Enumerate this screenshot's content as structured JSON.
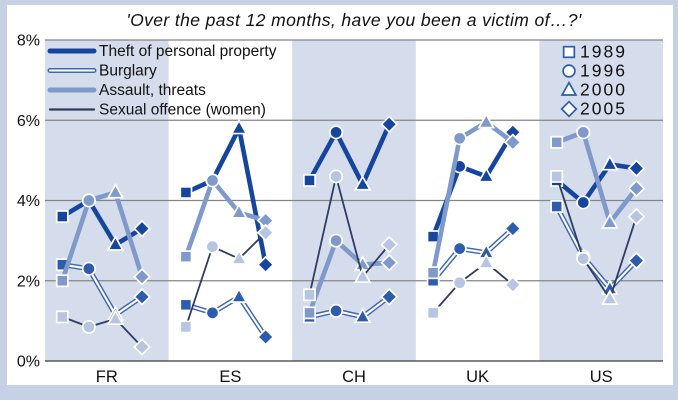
{
  "frame": {
    "outer_color": "#c7d1e6",
    "inner_color": "#ffffff"
  },
  "title": "'Over the past 12 months, have you been a victim of…?'",
  "chart_data": {
    "type": "line",
    "title": "'Over the past 12 months, have you been a victim of…?'",
    "ylim": [
      0,
      8
    ],
    "ytick_labels": [
      "8%",
      "6%",
      "4%",
      "2%",
      "0%"
    ],
    "ytick_values": [
      8,
      6,
      4,
      2,
      0
    ],
    "grid": true,
    "band_color": "#d5ddec",
    "gridline_color": "#858585",
    "baseline_color": "#3a3a3a",
    "categories": [
      "FR",
      "ES",
      "CH",
      "UK",
      "US"
    ],
    "years": [
      {
        "label": "1989",
        "marker": "square"
      },
      {
        "label": "1996",
        "marker": "circle"
      },
      {
        "label": "2000",
        "marker": "triangle"
      },
      {
        "label": "2005",
        "marker": "diamond"
      }
    ],
    "legend_series_position": "top-left",
    "legend_years_position": "top-right",
    "year_symbol_color": "#2d5cac",
    "series": [
      {
        "key": "theft",
        "name": "Theft of personal property",
        "line_style": "solid-thick",
        "color": "#16459e",
        "marker_color": "#16459e",
        "values": {
          "FR": [
            3.6,
            4.0,
            2.9,
            3.3
          ],
          "ES": [
            4.2,
            4.5,
            5.8,
            2.4
          ],
          "CH": [
            4.5,
            5.7,
            4.4,
            5.9
          ],
          "UK": [
            3.1,
            4.85,
            4.6,
            5.7
          ],
          "US": [
            4.5,
            3.95,
            4.9,
            4.8
          ]
        }
      },
      {
        "key": "burglary",
        "name": "Burglary",
        "line_style": "double-outline",
        "color": "#4067b0",
        "marker_color": "#2d5cac",
        "values": {
          "FR": [
            2.4,
            2.3,
            1.15,
            1.6
          ],
          "ES": [
            1.4,
            1.2,
            1.6,
            0.6
          ],
          "CH": [
            1.1,
            1.25,
            1.1,
            1.6
          ],
          "UK": [
            2.0,
            2.8,
            2.7,
            3.3
          ],
          "US": [
            3.85,
            2.6,
            1.8,
            2.5
          ]
        }
      },
      {
        "key": "assault",
        "name": "Assault, threats",
        "line_style": "solid-thick",
        "color": "#7f9aca",
        "marker_color": "#7f9aca",
        "values": {
          "FR": [
            2.0,
            4.0,
            4.2,
            2.1
          ],
          "ES": [
            2.6,
            4.5,
            3.7,
            3.5
          ],
          "CH": [
            1.2,
            3.0,
            2.4,
            2.45
          ],
          "UK": [
            2.2,
            5.55,
            5.95,
            5.45
          ],
          "US": [
            5.45,
            5.7,
            3.45,
            4.3
          ]
        }
      },
      {
        "key": "sexual-offence",
        "name": "Sexual offence (women)",
        "line_style": "solid-thin",
        "color": "#2f3d63",
        "marker_color": "#b7c5e3",
        "values": {
          "FR": [
            1.1,
            0.85,
            1.05,
            0.35
          ],
          "ES": [
            0.85,
            2.85,
            2.55,
            3.2
          ],
          "CH": [
            1.65,
            4.6,
            2.1,
            2.9
          ],
          "UK": [
            1.2,
            1.95,
            2.45,
            1.9
          ],
          "US": [
            4.6,
            2.55,
            1.55,
            3.6
          ]
        }
      }
    ]
  }
}
